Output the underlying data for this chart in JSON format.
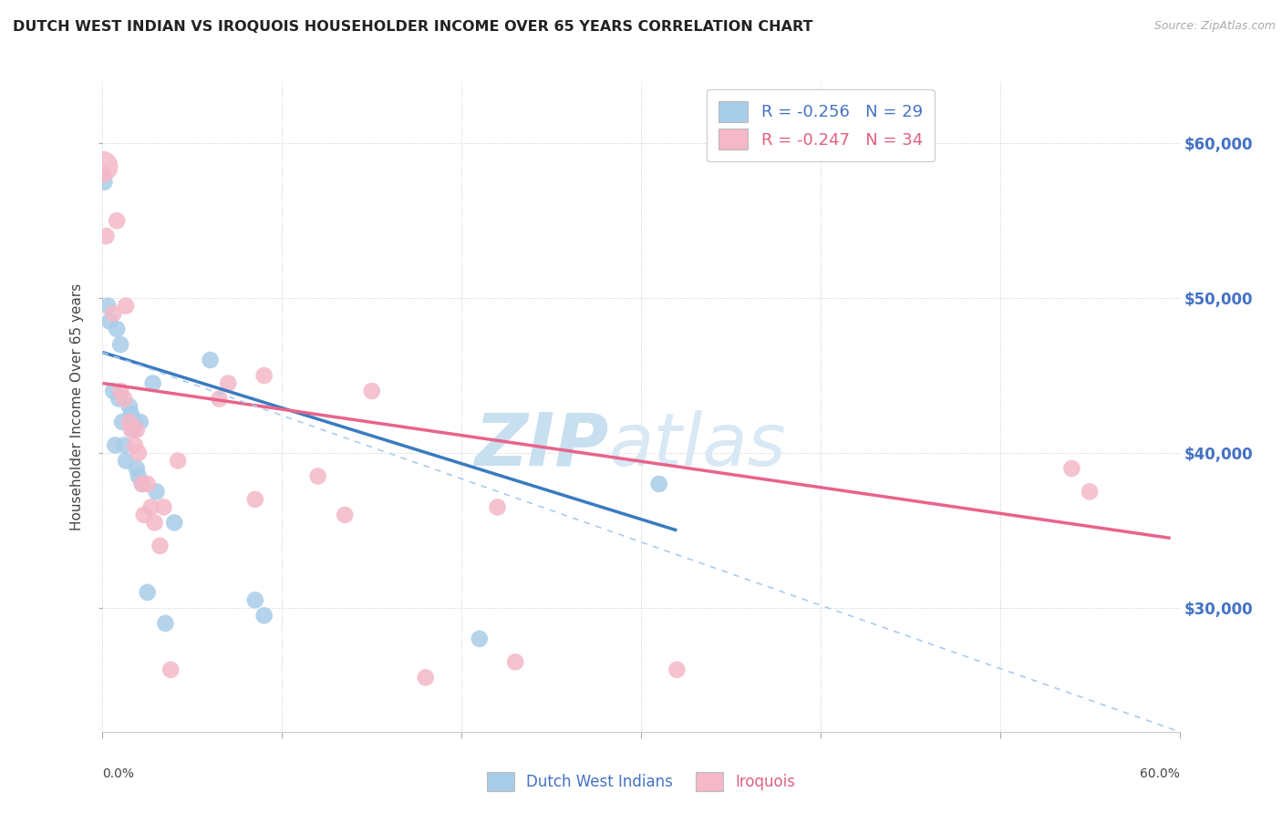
{
  "title": "DUTCH WEST INDIAN VS IROQUOIS HOUSEHOLDER INCOME OVER 65 YEARS CORRELATION CHART",
  "source": "Source: ZipAtlas.com",
  "ylabel": "Householder Income Over 65 years",
  "xlim": [
    0.0,
    0.6
  ],
  "ylim": [
    22000,
    64000
  ],
  "xtick_labels_bottom": [
    "0.0%",
    "60.0%"
  ],
  "xtick_vals_bottom": [
    0.0,
    0.6
  ],
  "ytick_vals": [
    30000,
    40000,
    50000,
    60000
  ],
  "ytick_labels": [
    "$30,000",
    "$40,000",
    "$50,000",
    "$60,000"
  ],
  "blue_color": "#a8cde8",
  "pink_color": "#f4b8c8",
  "blue_line_color": "#3a7bbf",
  "pink_line_color": "#e8638a",
  "dashed_line_color": "#aaccee",
  "r_blue": -0.256,
  "n_blue": 29,
  "r_pink": -0.247,
  "n_pink": 34,
  "blue_x": [
    0.001,
    0.003,
    0.004,
    0.006,
    0.007,
    0.008,
    0.009,
    0.01,
    0.011,
    0.012,
    0.013,
    0.015,
    0.016,
    0.017,
    0.018,
    0.019,
    0.02,
    0.021,
    0.022,
    0.025,
    0.028,
    0.03,
    0.035,
    0.04,
    0.06,
    0.085,
    0.09,
    0.21,
    0.31
  ],
  "blue_y": [
    57500,
    49500,
    48500,
    44000,
    40500,
    48000,
    43500,
    47000,
    42000,
    40500,
    39500,
    43000,
    42500,
    41500,
    42000,
    39000,
    38500,
    42000,
    38000,
    31000,
    44500,
    37500,
    29000,
    35500,
    46000,
    30500,
    29500,
    28000,
    38000
  ],
  "pink_x": [
    0.0,
    0.002,
    0.006,
    0.008,
    0.01,
    0.012,
    0.013,
    0.015,
    0.016,
    0.018,
    0.019,
    0.02,
    0.022,
    0.023,
    0.025,
    0.027,
    0.029,
    0.032,
    0.034,
    0.038,
    0.042,
    0.065,
    0.07,
    0.085,
    0.09,
    0.12,
    0.135,
    0.15,
    0.18,
    0.22,
    0.23,
    0.32,
    0.54,
    0.55
  ],
  "pink_y": [
    58000,
    54000,
    49000,
    55000,
    44000,
    43500,
    49500,
    42000,
    41500,
    40500,
    41500,
    40000,
    38000,
    36000,
    38000,
    36500,
    35500,
    34000,
    36500,
    26000,
    39500,
    43500,
    44500,
    37000,
    45000,
    38500,
    36000,
    44000,
    25500,
    36500,
    26500,
    26000,
    39000,
    37500
  ],
  "blue_trend_x": [
    0.0,
    0.32
  ],
  "blue_trend_y": [
    46500,
    35000
  ],
  "pink_trend_x": [
    0.0,
    0.595
  ],
  "pink_trend_y": [
    44500,
    34500
  ],
  "dash_trend_x": [
    0.0,
    0.6
  ],
  "dash_trend_y": [
    46500,
    22000
  ],
  "watermark_zi": "ZIP",
  "watermark_atlas": "atlas",
  "legend_label_blue": "Dutch West Indians",
  "legend_label_pink": "Iroquois",
  "background_color": "#ffffff",
  "grid_color": "#cccccc",
  "text_color_dark": "#444444",
  "text_color_blue": "#4472c4"
}
